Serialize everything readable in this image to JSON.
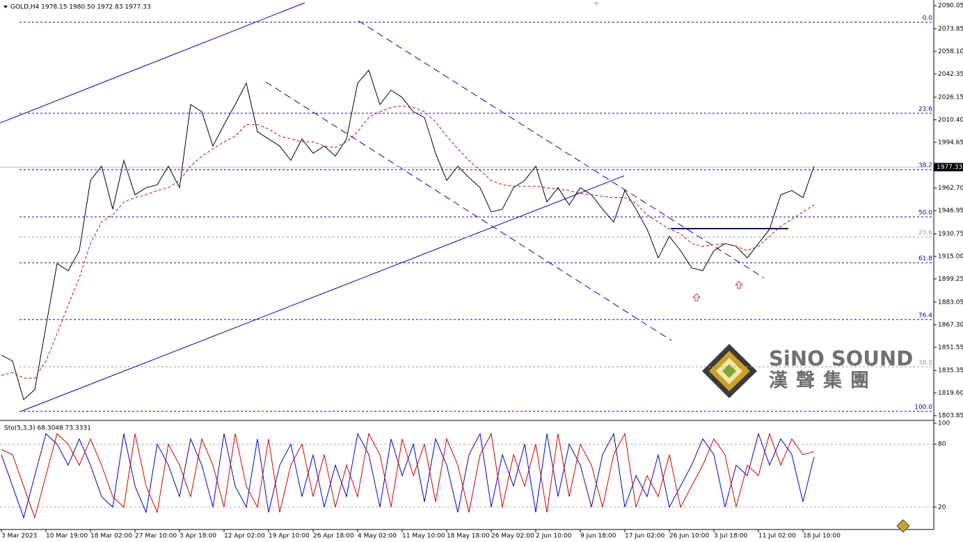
{
  "chart_data": [
    {
      "type": "line",
      "header": "GOLD,H4  1978.15 1980.50 1972.83 1977.33",
      "categories": [
        "3 Mar 2023",
        null,
        null,
        null,
        "10 Mar 19:00",
        null,
        null,
        null,
        "18 Mar 02:00",
        null,
        null,
        null,
        "27 Mar 10:00",
        null,
        null,
        null,
        "3 Apr 18:00",
        null,
        null,
        null,
        "12 Apr 02:00",
        null,
        null,
        null,
        "19 Apr 10:00",
        null,
        null,
        null,
        "26 Apr 18:00",
        null,
        null,
        null,
        "4 May 02:00",
        null,
        null,
        null,
        "11 May 10:00",
        null,
        null,
        null,
        "18 May 18:00",
        null,
        null,
        null,
        "26 May 02:00",
        null,
        null,
        null,
        "2 Jun 10:00",
        null,
        null,
        null,
        "9 Jun 18:00",
        null,
        null,
        null,
        "17 Jun 02:00",
        null,
        null,
        null,
        "26 Jun 10:00",
        null,
        null,
        null,
        "3 Jul 18:00",
        null,
        null,
        null,
        "11 Jul 02:00",
        null,
        null,
        null,
        "18 Jul 10:00",
        null
      ],
      "series": [
        {
          "name": "GOLD",
          "color": "#000000",
          "values": [
            1846,
            1842,
            1815,
            1822,
            1866,
            1910,
            1905,
            1919,
            1968,
            1978,
            1948,
            1982,
            1958,
            1963,
            1965,
            1978,
            1963,
            2021,
            2016,
            1992,
            2007,
            2021,
            2036,
            2002,
            1997,
            1992,
            1982,
            1997,
            1987,
            1992,
            1985,
            1997,
            2036,
            2045,
            2021,
            2031,
            2026,
            2016,
            2012,
            1987,
            1968,
            1978,
            1970,
            1963,
            1946,
            1948,
            1963,
            1968,
            1978,
            1953,
            1963,
            1951,
            1963,
            1958,
            1948,
            1939,
            1961,
            1948,
            1934,
            1914,
            1929,
            1919,
            1907,
            1905,
            1919,
            1924,
            1922,
            1914,
            1924,
            1934,
            1958,
            1961,
            1956,
            1978
          ]
        },
        {
          "name": "MA",
          "color": "#cc0000",
          "dashed": true,
          "values": [
            1832,
            1834,
            1830,
            1830,
            1842,
            1861,
            1881,
            1900,
            1924,
            1939,
            1944,
            1953,
            1956,
            1958,
            1961,
            1963,
            1968,
            1978,
            1985,
            1990,
            1995,
            1999,
            2007,
            2007,
            2004,
            1999,
            1997,
            1995,
            1995,
            1992,
            1991,
            1995,
            2002,
            2012,
            2016,
            2019,
            2020,
            2019,
            2016,
            2009,
            1999,
            1990,
            1982,
            1975,
            1968,
            1965,
            1964,
            1964,
            1964,
            1963,
            1962,
            1961,
            1959,
            1958,
            1957,
            1956,
            1956,
            1952,
            1944,
            1939,
            1934,
            1931,
            1924,
            1922,
            1923,
            1924,
            1922,
            1919,
            1922,
            1929,
            1936,
            1941,
            1946,
            1951
          ]
        }
      ],
      "ylim": [
        1801,
        2094
      ],
      "yticks": [
        2090.05,
        2073.85,
        {
          "value": 2058.1,
          "label": "2058.10"
        },
        2042.35,
        2026.15,
        {
          "value": 2010.4,
          "label": "2010.40"
        },
        1994.65,
        {
          "value": 1962.7,
          "label": "1962.70"
        },
        1946.95,
        1930.75,
        {
          "value": 1915,
          "label": "1915.00"
        },
        1899.25,
        1883.05,
        {
          "value": 1867.3,
          "label": "1867.30"
        },
        1851.55,
        1835.35,
        {
          "value": 1819.6,
          "label": "1819.60"
        },
        1803.85
      ],
      "last_price": 1977.33,
      "fib_levels": [
        {
          "label": "0.0",
          "price": 2078.5,
          "color": "#0000cc"
        },
        {
          "label": "23.6",
          "price": 2014.9,
          "color": "#0000cc"
        },
        {
          "label": "38.2",
          "price": 1975.6,
          "color": "#0000cc"
        },
        {
          "label": "50.0",
          "price": 1942.6,
          "color": "#0000cc"
        },
        {
          "label": "61.8",
          "price": 1910.6,
          "color": "#0000cc"
        },
        {
          "label": "76.4",
          "price": 1870.9,
          "color": "#0000cc"
        },
        {
          "label": "100.0",
          "price": 1806.8,
          "color": "#0000cc"
        },
        {
          "label": "23.6",
          "price": 1928.6,
          "color": "#999999"
        },
        {
          "label": "38.2",
          "price": 1837.9,
          "color": "#999999"
        }
      ],
      "watermark": {
        "name": "SiNO SOUND",
        "chinese": "漢聲集團"
      }
    },
    {
      "type": "line",
      "header": "Sto(5,3,3) 68.3048 73.3331",
      "series": [
        {
          "name": "Main",
          "color": "#0000cc",
          "values": [
            70,
            40,
            10,
            50,
            90,
            80,
            60,
            85,
            60,
            30,
            20,
            90,
            40,
            15,
            80,
            60,
            30,
            85,
            60,
            20,
            90,
            40,
            20,
            85,
            15,
            60,
            80,
            30,
            70,
            20,
            60,
            30,
            90,
            70,
            20,
            85,
            50,
            80,
            25,
            85,
            60,
            15,
            70,
            90,
            20,
            70,
            40,
            80,
            15,
            90,
            30,
            80,
            60,
            20,
            70,
            90,
            20,
            50,
            30,
            70,
            20,
            40,
            60,
            85,
            70,
            20,
            60,
            50,
            90,
            60,
            85,
            70,
            25,
            68
          ]
        },
        {
          "name": "Signal",
          "color": "#cc0000",
          "values": [
            75,
            70,
            40,
            10,
            50,
            90,
            80,
            60,
            85,
            60,
            30,
            20,
            90,
            40,
            15,
            80,
            60,
            30,
            85,
            60,
            20,
            90,
            40,
            20,
            85,
            15,
            60,
            80,
            30,
            70,
            20,
            60,
            30,
            90,
            70,
            20,
            85,
            50,
            80,
            25,
            85,
            60,
            15,
            70,
            90,
            20,
            70,
            40,
            80,
            15,
            90,
            30,
            80,
            60,
            20,
            70,
            90,
            20,
            50,
            30,
            70,
            20,
            40,
            60,
            85,
            70,
            20,
            60,
            50,
            90,
            60,
            85,
            70,
            73
          ]
        }
      ],
      "ylim": [
        0,
        100
      ],
      "yticks": [
        20,
        80,
        100
      ]
    }
  ]
}
